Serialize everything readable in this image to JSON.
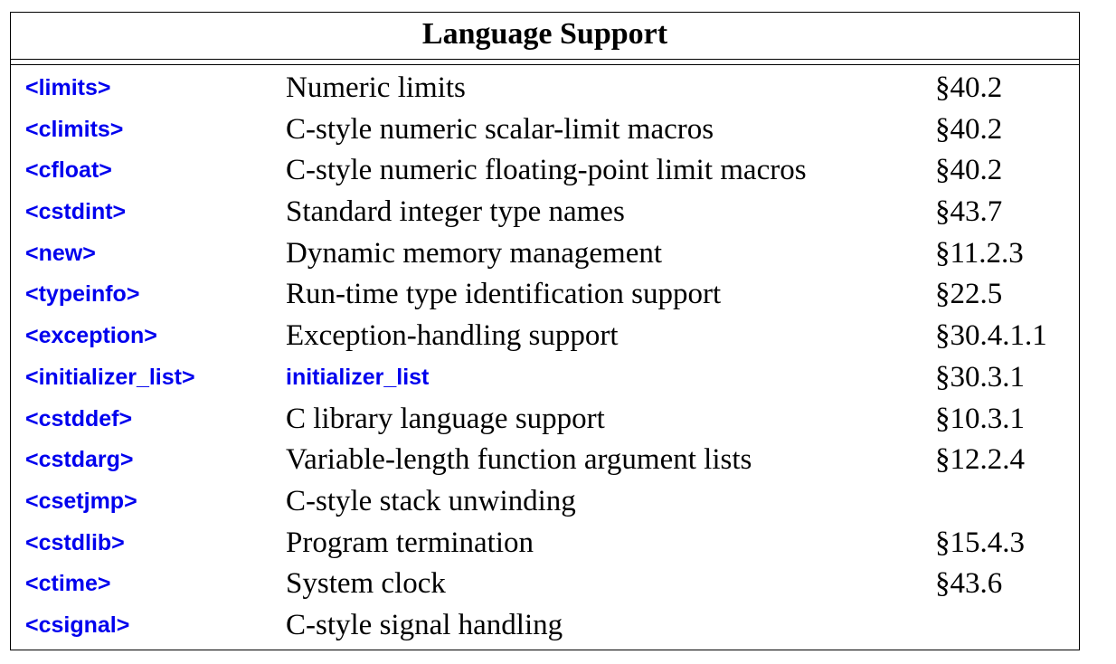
{
  "table": {
    "title": "Language Support",
    "rows": [
      {
        "header": "<limits>",
        "description": "Numeric limits",
        "section": "§40.2"
      },
      {
        "header": "<climits>",
        "description": "C-style numeric scalar-limit macros",
        "section": "§40.2"
      },
      {
        "header": "<cfloat>",
        "description": "C-style numeric floating-point limit macros",
        "section": "§40.2"
      },
      {
        "header": "<cstdint>",
        "description": "Standard integer type names",
        "section": "§43.7"
      },
      {
        "header": "<new>",
        "description": "Dynamic memory management",
        "section": "§11.2.3"
      },
      {
        "header": "<typeinfo>",
        "description": "Run-time type identification support",
        "section": "§22.5"
      },
      {
        "header": "<exception>",
        "description": "Exception-handling support",
        "section": "§30.4.1.1"
      },
      {
        "header": "<initializer_list>",
        "description": "initializer_list",
        "section": "§30.3.1"
      },
      {
        "header": "<cstddef>",
        "description": "C library language support",
        "section": "§10.3.1"
      },
      {
        "header": "<cstdarg>",
        "description": "Variable-length function argument lists",
        "section": "§12.2.4"
      },
      {
        "header": "<csetjmp>",
        "description": "C-style stack unwinding",
        "section": ""
      },
      {
        "header": "<cstdlib>",
        "description": "Program termination",
        "section": "§15.4.3"
      },
      {
        "header": "<ctime>",
        "description": "System clock",
        "section": "§43.6"
      },
      {
        "header": "<csignal>",
        "description": "C-style signal handling",
        "section": ""
      }
    ]
  }
}
